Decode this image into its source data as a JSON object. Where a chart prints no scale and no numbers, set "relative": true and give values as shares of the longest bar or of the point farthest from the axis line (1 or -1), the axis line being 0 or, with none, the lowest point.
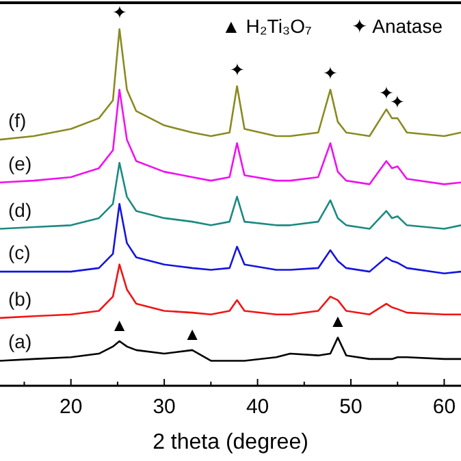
{
  "chart_data": {
    "type": "line",
    "xlabel": "2 theta (degree)",
    "relative": true,
    "xlim": [
      12.4,
      61.8
    ],
    "xticks": [
      {
        "value": 15,
        "label": null
      },
      20,
      {
        "value": 25,
        "label": null
      },
      30,
      {
        "value": 35,
        "label": null
      },
      40,
      {
        "value": 45,
        "label": null
      },
      50,
      {
        "value": 55,
        "label": null
      },
      60
    ],
    "x": [
      12.4,
      16,
      20,
      23,
      24.5,
      25.2,
      26,
      27,
      30,
      33,
      35,
      37,
      37.8,
      38.6,
      42,
      43.5,
      46.5,
      47.8,
      48.6,
      49.5,
      52,
      53.8,
      54.4,
      55,
      56,
      60,
      61.8
    ],
    "series": [
      {
        "name": "(a)",
        "color": "#000000",
        "values": [
          0.07,
          0.075,
          0.08,
          0.09,
          0.11,
          0.125,
          0.11,
          0.1,
          0.09,
          0.1,
          0.07,
          0.07,
          0.07,
          0.07,
          0.08,
          0.09,
          0.085,
          0.09,
          0.135,
          0.085,
          0.075,
          0.075,
          0.075,
          0.08,
          0.08,
          0.075,
          0.075
        ]
      },
      {
        "name": "(b)",
        "color": "#f01414",
        "values": [
          0.19,
          0.195,
          0.2,
          0.21,
          0.25,
          0.34,
          0.27,
          0.23,
          0.21,
          0.205,
          0.2,
          0.21,
          0.24,
          0.21,
          0.2,
          0.2,
          0.21,
          0.25,
          0.24,
          0.21,
          0.2,
          0.23,
          0.22,
          0.215,
          0.205,
          0.2,
          0.2
        ]
      },
      {
        "name": "(c)",
        "color": "#1414e0",
        "values": [
          0.32,
          0.32,
          0.32,
          0.33,
          0.37,
          0.51,
          0.4,
          0.36,
          0.34,
          0.33,
          0.325,
          0.33,
          0.39,
          0.34,
          0.325,
          0.325,
          0.33,
          0.38,
          0.35,
          0.33,
          0.32,
          0.36,
          0.35,
          0.345,
          0.33,
          0.315,
          0.32
        ]
      },
      {
        "name": "(d)",
        "color": "#1a8a80",
        "values": [
          0.44,
          0.445,
          0.45,
          0.47,
          0.51,
          0.625,
          0.53,
          0.49,
          0.47,
          0.46,
          0.45,
          0.46,
          0.53,
          0.46,
          0.45,
          0.45,
          0.46,
          0.52,
          0.47,
          0.45,
          0.44,
          0.49,
          0.47,
          0.475,
          0.45,
          0.44,
          0.45
        ]
      },
      {
        "name": "(e)",
        "color": "#f010f0",
        "values": [
          0.57,
          0.575,
          0.585,
          0.61,
          0.66,
          0.83,
          0.69,
          0.63,
          0.6,
          0.585,
          0.575,
          0.585,
          0.68,
          0.59,
          0.575,
          0.575,
          0.585,
          0.68,
          0.6,
          0.575,
          0.565,
          0.63,
          0.61,
          0.615,
          0.58,
          0.565,
          0.57
        ]
      },
      {
        "name": "(f)",
        "color": "#8a8a20",
        "values": [
          0.69,
          0.7,
          0.72,
          0.75,
          0.8,
          1,
          0.83,
          0.77,
          0.73,
          0.71,
          0.7,
          0.71,
          0.84,
          0.72,
          0.7,
          0.7,
          0.71,
          0.83,
          0.74,
          0.71,
          0.7,
          0.775,
          0.75,
          0.75,
          0.71,
          0.7,
          0.71
        ]
      }
    ],
    "annotations": [
      "▲ H₂Ti₃O₇",
      "✦ Anatase",
      {
        "text": "▲",
        "x": 25.2,
        "y": 0.125
      },
      {
        "text": "▲",
        "x": 33,
        "y": 0.1
      },
      {
        "text": "▲",
        "x": 48.6,
        "y": 0.135
      },
      {
        "text": "✦",
        "x": 25.2,
        "y": 1
      },
      {
        "text": "✦",
        "x": 37.8,
        "y": 0.84
      },
      {
        "text": "✦",
        "x": 47.8,
        "y": 0.83
      },
      {
        "text": "✦",
        "x": 53.8,
        "y": 0.775
      },
      {
        "text": "✦",
        "x": 55,
        "y": 0.75
      }
    ]
  }
}
